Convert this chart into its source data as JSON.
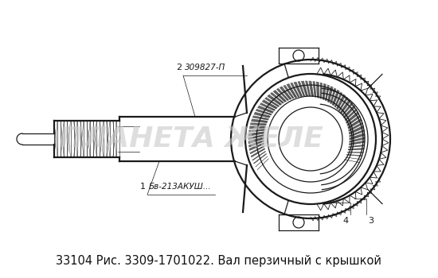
{
  "title": "33104 Рис. 3309-1701022. Вал перзичный с крышкой",
  "bg_color": "#ffffff",
  "part1": "Бв-213АКУШ...",
  "part2": "309827-П",
  "watermark": "ПЛАНЕТА ЖЕЛЕ",
  "line_color": "#1a1a1a",
  "watermark_color": "#c8c8c8",
  "title_fontsize": 10.5,
  "watermark_fontsize": 26
}
